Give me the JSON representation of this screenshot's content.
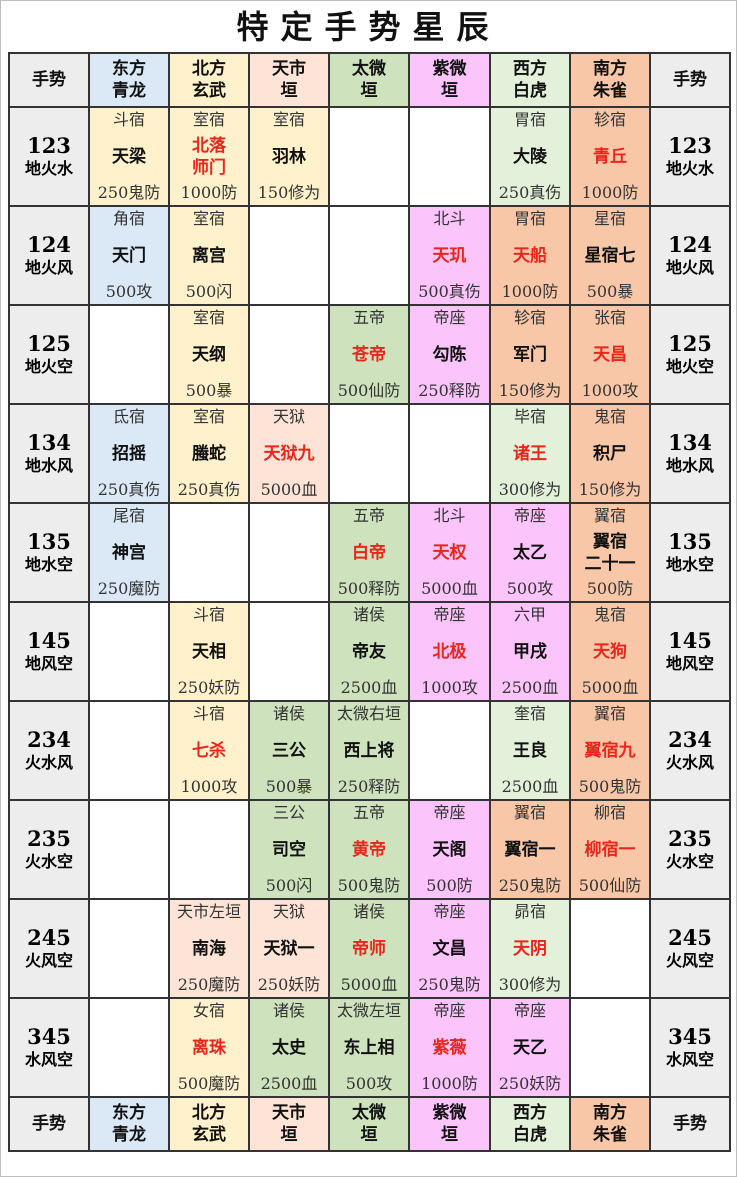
{
  "title": "特定手势星辰",
  "colors": {
    "east": "#dbe9f6",
    "north": "#fef1cc",
    "market": "#fde4d6",
    "taiwei": "#cde2bd",
    "ziwei": "#fbc4fb",
    "west": "#e3f0da",
    "south": "#f8c7a8",
    "gesture": "#ededed",
    "highlight": "#e8261c"
  },
  "header": {
    "gesture": "手势",
    "columns": [
      {
        "line1": "东方",
        "line2": "青龙",
        "color": "e"
      },
      {
        "line1": "北方",
        "line2": "玄武",
        "color": "n"
      },
      {
        "line1": "天市",
        "line2": "垣",
        "color": "m"
      },
      {
        "line1": "太微",
        "line2": "垣",
        "color": "t"
      },
      {
        "line1": "紫微",
        "line2": "垣",
        "color": "z"
      },
      {
        "line1": "西方",
        "line2": "白虎",
        "color": "w"
      },
      {
        "line1": "南方",
        "line2": "朱雀",
        "color": "s"
      }
    ]
  },
  "rows": [
    {
      "num": "123",
      "elem": "地火水",
      "cells": [
        {
          "color": "n",
          "cat": "斗宿",
          "name": "天梁",
          "bonus": "250鬼防",
          "red": false
        },
        {
          "color": "n",
          "cat": "室宿",
          "name": "北落\n师门",
          "bonus": "1000防",
          "red": true
        },
        {
          "color": "n",
          "cat": "室宿",
          "name": "羽林",
          "bonus": "150修为",
          "red": false
        },
        null,
        null,
        {
          "color": "w",
          "cat": "胃宿",
          "name": "大陵",
          "bonus": "250真伤",
          "red": false
        },
        {
          "color": "s",
          "cat": "轸宿",
          "name": "青丘",
          "bonus": "1000防",
          "red": true
        }
      ]
    },
    {
      "num": "124",
      "elem": "地火风",
      "cells": [
        {
          "color": "e",
          "cat": "角宿",
          "name": "天门",
          "bonus": "500攻",
          "red": false
        },
        {
          "color": "n",
          "cat": "室宿",
          "name": "离宫",
          "bonus": "500闪",
          "red": false
        },
        null,
        null,
        {
          "color": "z",
          "cat": "北斗",
          "name": "天玑",
          "bonus": "500真伤",
          "red": true
        },
        {
          "color": "s",
          "cat": "胃宿",
          "name": "天船",
          "bonus": "1000防",
          "red": true
        },
        {
          "color": "s",
          "cat": "星宿",
          "name": "星宿七",
          "bonus": "500暴",
          "red": false
        }
      ]
    },
    {
      "num": "125",
      "elem": "地火空",
      "cells": [
        null,
        {
          "color": "n",
          "cat": "室宿",
          "name": "天纲",
          "bonus": "500暴",
          "red": false
        },
        null,
        {
          "color": "t",
          "cat": "五帝",
          "name": "苍帝",
          "bonus": "500仙防",
          "red": true
        },
        {
          "color": "z",
          "cat": "帝座",
          "name": "勾陈",
          "bonus": "250释防",
          "red": false
        },
        {
          "color": "s",
          "cat": "轸宿",
          "name": "军门",
          "bonus": "150修为",
          "red": false
        },
        {
          "color": "s",
          "cat": "张宿",
          "name": "天昌",
          "bonus": "1000攻",
          "red": true
        }
      ]
    },
    {
      "num": "134",
      "elem": "地水风",
      "cells": [
        {
          "color": "e",
          "cat": "氐宿",
          "name": "招摇",
          "bonus": "250真伤",
          "red": false
        },
        {
          "color": "n",
          "cat": "室宿",
          "name": "螣蛇",
          "bonus": "250真伤",
          "red": false
        },
        {
          "color": "m",
          "cat": "天狱",
          "name": "天狱九",
          "bonus": "5000血",
          "red": true
        },
        null,
        null,
        {
          "color": "w",
          "cat": "毕宿",
          "name": "诸王",
          "bonus": "300修为",
          "red": true
        },
        {
          "color": "s",
          "cat": "鬼宿",
          "name": "积尸",
          "bonus": "150修为",
          "red": false
        }
      ]
    },
    {
      "num": "135",
      "elem": "地水空",
      "cells": [
        {
          "color": "e",
          "cat": "尾宿",
          "name": "神宫",
          "bonus": "250魔防",
          "red": false
        },
        null,
        null,
        {
          "color": "t",
          "cat": "五帝",
          "name": "白帝",
          "bonus": "500释防",
          "red": true
        },
        {
          "color": "z",
          "cat": "北斗",
          "name": "天权",
          "bonus": "5000血",
          "red": true
        },
        {
          "color": "z",
          "cat": "帝座",
          "name": "太乙",
          "bonus": "500攻",
          "red": false
        },
        {
          "color": "s",
          "cat": "翼宿",
          "name": "翼宿\n二十一",
          "bonus": "500防",
          "red": false
        }
      ]
    },
    {
      "num": "145",
      "elem": "地风空",
      "cells": [
        null,
        {
          "color": "n",
          "cat": "斗宿",
          "name": "天相",
          "bonus": "250妖防",
          "red": false
        },
        null,
        {
          "color": "t",
          "cat": "诸侯",
          "name": "帝友",
          "bonus": "2500血",
          "red": false
        },
        {
          "color": "z",
          "cat": "帝座",
          "name": "北极",
          "bonus": "1000攻",
          "red": true
        },
        {
          "color": "z",
          "cat": "六甲",
          "name": "甲戌",
          "bonus": "2500血",
          "red": false
        },
        {
          "color": "s",
          "cat": "鬼宿",
          "name": "天狗",
          "bonus": "5000血",
          "red": true
        }
      ]
    },
    {
      "num": "234",
      "elem": "火水风",
      "cells": [
        null,
        {
          "color": "n",
          "cat": "斗宿",
          "name": "七杀",
          "bonus": "1000攻",
          "red": true
        },
        {
          "color": "t",
          "cat": "诸侯",
          "name": "三公",
          "bonus": "500暴",
          "red": false
        },
        {
          "color": "t",
          "cat": "太微右垣",
          "name": "西上将",
          "bonus": "250释防",
          "red": false
        },
        null,
        {
          "color": "w",
          "cat": "奎宿",
          "name": "王良",
          "bonus": "2500血",
          "red": false
        },
        {
          "color": "s",
          "cat": "翼宿",
          "name": "翼宿九",
          "bonus": "500鬼防",
          "red": true
        }
      ]
    },
    {
      "num": "235",
      "elem": "火水空",
      "cells": [
        null,
        null,
        {
          "color": "t",
          "cat": "三公",
          "name": "司空",
          "bonus": "500闪",
          "red": false
        },
        {
          "color": "t",
          "cat": "五帝",
          "name": "黄帝",
          "bonus": "500鬼防",
          "red": true
        },
        {
          "color": "z",
          "cat": "帝座",
          "name": "天阁",
          "bonus": "500防",
          "red": false
        },
        {
          "color": "s",
          "cat": "翼宿",
          "name": "翼宿一",
          "bonus": "250鬼防",
          "red": false
        },
        {
          "color": "s",
          "cat": "柳宿",
          "name": "柳宿一",
          "bonus": "500仙防",
          "red": true
        }
      ]
    },
    {
      "num": "245",
      "elem": "火风空",
      "cells": [
        null,
        {
          "color": "m",
          "cat": "天市左垣",
          "name": "南海",
          "bonus": "250魔防",
          "red": false
        },
        {
          "color": "m",
          "cat": "天狱",
          "name": "天狱一",
          "bonus": "250妖防",
          "red": false
        },
        {
          "color": "t",
          "cat": "诸侯",
          "name": "帝师",
          "bonus": "5000血",
          "red": true
        },
        {
          "color": "z",
          "cat": "帝座",
          "name": "文昌",
          "bonus": "250鬼防",
          "red": false
        },
        {
          "color": "w",
          "cat": "昴宿",
          "name": "天阴",
          "bonus": "300修为",
          "red": true
        },
        null
      ]
    },
    {
      "num": "345",
      "elem": "水风空",
      "cells": [
        null,
        {
          "color": "n",
          "cat": "女宿",
          "name": "离珠",
          "bonus": "500魔防",
          "red": true
        },
        {
          "color": "t",
          "cat": "诸侯",
          "name": "太史",
          "bonus": "2500血",
          "red": false
        },
        {
          "color": "t",
          "cat": "太微左垣",
          "name": "东上相",
          "bonus": "500攻",
          "red": false
        },
        {
          "color": "z",
          "cat": "帝座",
          "name": "紫薇",
          "bonus": "1000防",
          "red": true
        },
        {
          "color": "z",
          "cat": "帝座",
          "name": "天乙",
          "bonus": "250妖防",
          "red": false
        },
        null
      ]
    }
  ]
}
